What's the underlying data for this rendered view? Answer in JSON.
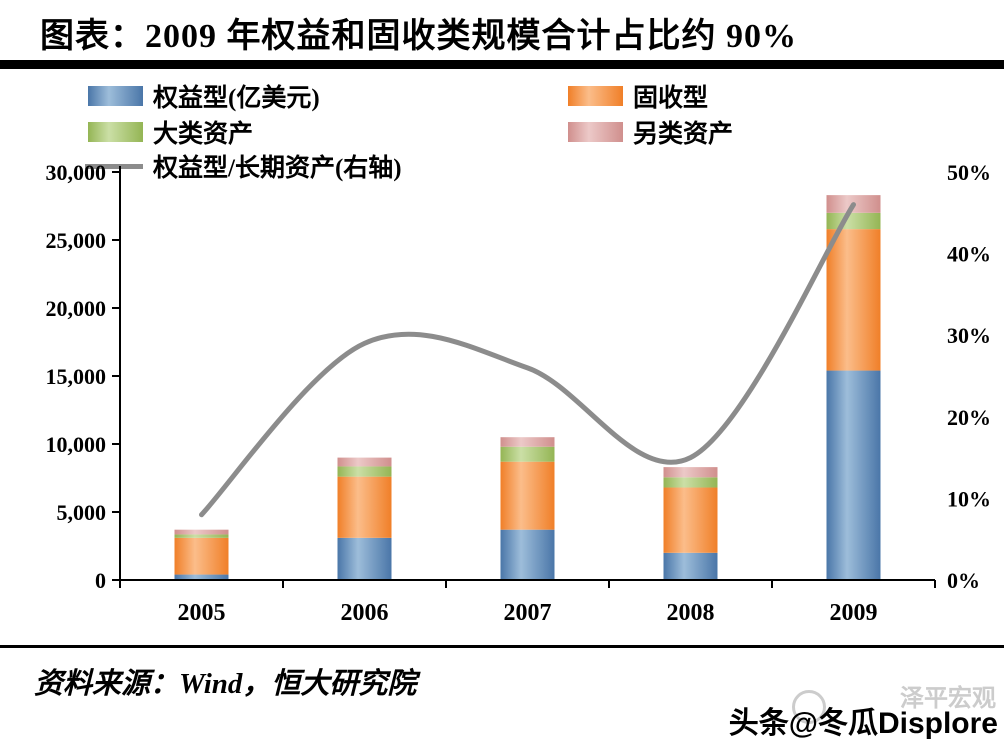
{
  "title": "图表：2009 年权益和固收类规模合计占比约 90%",
  "legend": {
    "items": [
      {
        "label": "权益型(亿美元)",
        "type": "box",
        "color": "#4a76a8",
        "light": "#9dbdda"
      },
      {
        "label": "固收型",
        "type": "box",
        "color": "#f07f28",
        "light": "#fbbd8a"
      },
      {
        "label": "大类资产",
        "type": "box",
        "color": "#94b554",
        "light": "#cbdfa6"
      },
      {
        "label": "另类资产",
        "type": "box",
        "color": "#d08f8d",
        "light": "#ecc9c8"
      },
      {
        "label": "权益型/长期资产(右轴)",
        "type": "line",
        "color": "#8c8c8c"
      }
    ]
  },
  "chart_data": {
    "type": "bar",
    "stacked": true,
    "grid": false,
    "legend_position": "top-left",
    "categories": [
      "2005",
      "2006",
      "2007",
      "2008",
      "2009"
    ],
    "series": [
      {
        "name": "权益型(亿美元)",
        "values": [
          400,
          3100,
          3700,
          2000,
          15400
        ],
        "color": "#4a76a8",
        "light": "#9dbdda"
      },
      {
        "name": "固收型",
        "values": [
          2700,
          4500,
          5000,
          4800,
          10400
        ],
        "color": "#f07f28",
        "light": "#fbbd8a"
      },
      {
        "name": "大类资产",
        "values": [
          250,
          750,
          1100,
          750,
          1200
        ],
        "color": "#94b554",
        "light": "#cbdfa6"
      },
      {
        "name": "另类资产",
        "values": [
          350,
          650,
          700,
          750,
          1300
        ],
        "color": "#d08f8d",
        "light": "#ecc9c8"
      }
    ],
    "line_series": {
      "name": "权益型/长期资产(右轴)",
      "axis": "right",
      "values": [
        8,
        29,
        26,
        15,
        46
      ],
      "color": "#8c8c8c"
    },
    "left_axis": {
      "ticks": [
        "30,000",
        "25,000",
        "20,000",
        "15,000",
        "10,000",
        "5,000",
        "0"
      ],
      "ylim": [
        0,
        30000
      ]
    },
    "right_axis": {
      "ticks": [
        "50%",
        "40%",
        "30%",
        "20%",
        "10%",
        "0%"
      ],
      "ylim": [
        0,
        50
      ]
    }
  },
  "source": "资料来源：Wind，恒大研究院",
  "watermark": {
    "handle": "头条@冬瓜Displore",
    "brand": "泽平宏观"
  }
}
